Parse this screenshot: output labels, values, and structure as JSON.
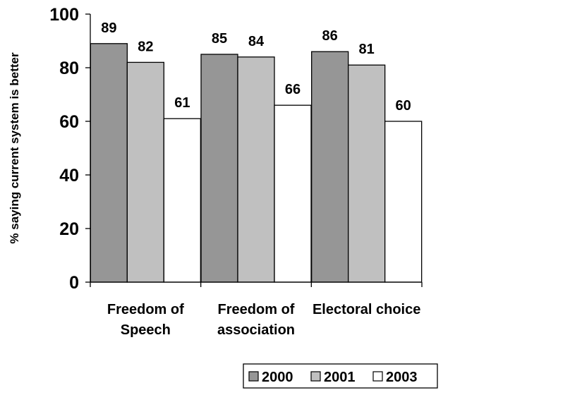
{
  "chart_data": {
    "type": "bar",
    "title": "",
    "xlabel": "",
    "ylabel": "% saying current system is better",
    "ylim": [
      0,
      100
    ],
    "yticks": [
      0,
      20,
      40,
      60,
      80,
      100
    ],
    "grid": false,
    "legend_position": "bottom",
    "categories": [
      [
        "Freedom of",
        "Speech"
      ],
      [
        "Freedom of",
        "association"
      ],
      [
        "Electoral choice"
      ]
    ],
    "series": [
      {
        "name": "2000",
        "color": "#969696",
        "values": [
          89,
          85,
          86
        ]
      },
      {
        "name": "2001",
        "color": "#c0c0c0",
        "values": [
          82,
          84,
          81
        ]
      },
      {
        "name": "2003",
        "color": "#ffffff",
        "values": [
          61,
          66,
          60
        ]
      }
    ]
  }
}
